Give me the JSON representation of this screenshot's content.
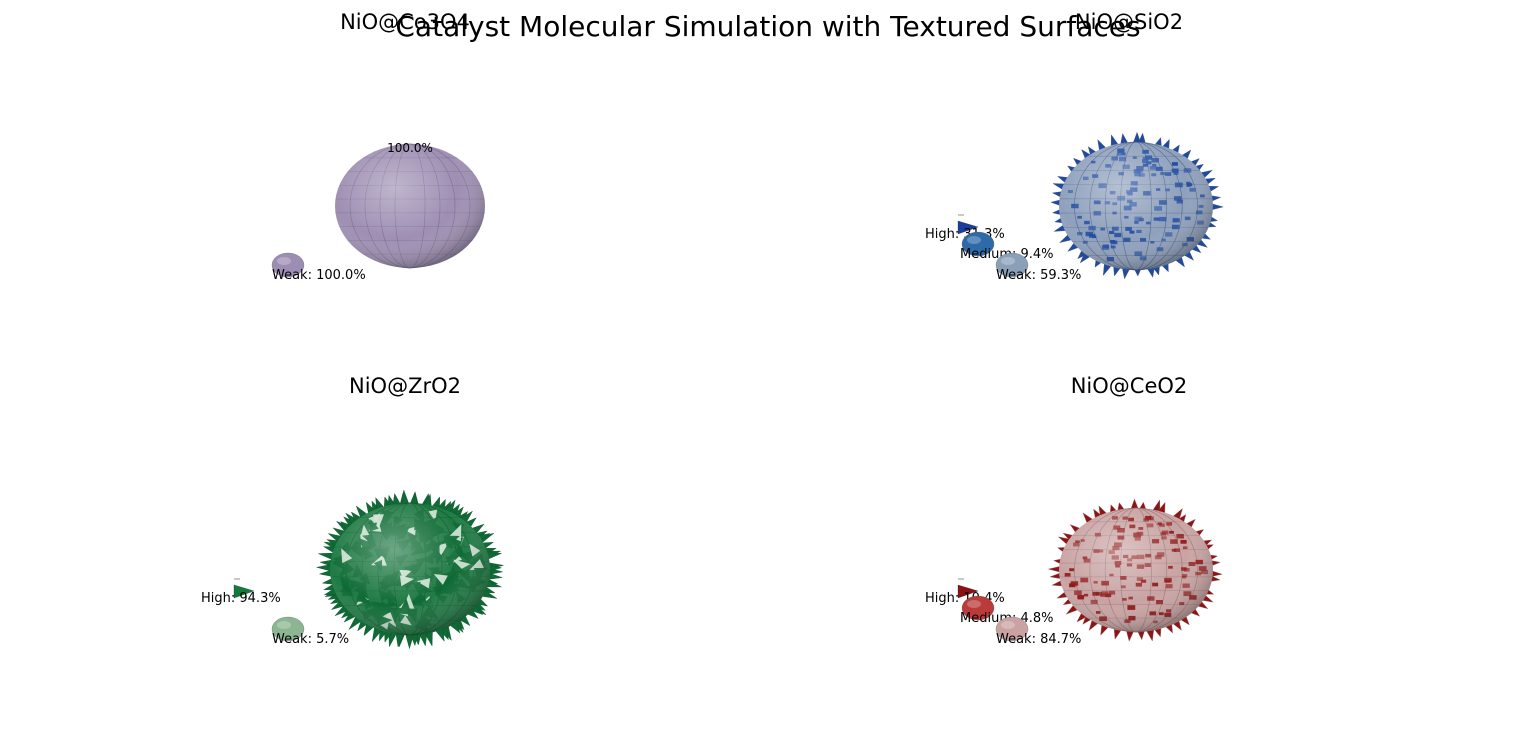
{
  "figure": {
    "title": "Catalyst Molecular Simulation with Textured Surfaces"
  },
  "chart_data": [
    {
      "type": "3d-sphere-surface",
      "title": "NiO@Co3O4",
      "title_shown": "NiO@Co3O4",
      "texture": "smooth",
      "colors": {
        "sphere": "#9e8fb3",
        "edge": "#6f6585"
      },
      "summit_label": "100.0%",
      "sites": [
        {
          "name": "Weak",
          "label": "Weak: 100.0%",
          "value": 100.0,
          "color": "#9c8db2"
        }
      ]
    },
    {
      "type": "3d-sphere-surface",
      "title": "NiO@SiO2",
      "title_shown": "NiO@SiO2",
      "texture": "mixed",
      "colors": {
        "sphere": "#8ea0bc",
        "spike": "#1f4aa0",
        "edge": "#3c4f77"
      },
      "sites": [
        {
          "name": "High",
          "label": "High: 31.3%",
          "value": 31.3,
          "color": "#1a3f9a"
        },
        {
          "name": "Medium",
          "label": "Medium: 9.4%",
          "value": 9.4,
          "color": "#2f6aa8"
        },
        {
          "name": "Weak",
          "label": "Weak: 59.3%",
          "value": 59.3,
          "color": "#8aa0b8"
        }
      ]
    },
    {
      "type": "3d-sphere-surface",
      "title": "NiO@ZrO2",
      "title_shown": "NiO@ZrO2",
      "texture": "spiky",
      "colors": {
        "sphere": "#1f7a44",
        "spike": "#0f6a35",
        "edge": "#0b4f26"
      },
      "sites": [
        {
          "name": "High",
          "label": "High: 94.3%",
          "value": 94.3,
          "color": "#137a3c"
        },
        {
          "name": "Weak",
          "label": "Weak: 5.7%",
          "value": 5.7,
          "color": "#8cb592"
        }
      ]
    },
    {
      "type": "3d-sphere-surface",
      "title": "NiO@CeO2",
      "title_shown": "NiO@CeO2",
      "texture": "mixed",
      "colors": {
        "sphere": "#c9a3a3",
        "spike": "#8e1515",
        "edge": "#8a6767"
      },
      "sites": [
        {
          "name": "High",
          "label": "High: 10.4%",
          "value": 10.4,
          "color": "#8c1212"
        },
        {
          "name": "Medium",
          "label": "Medium: 4.8%",
          "value": 4.8,
          "color": "#bb3a3a"
        },
        {
          "name": "Weak",
          "label": "Weak: 84.7%",
          "value": 84.7,
          "color": "#caa2a2"
        }
      ]
    }
  ]
}
